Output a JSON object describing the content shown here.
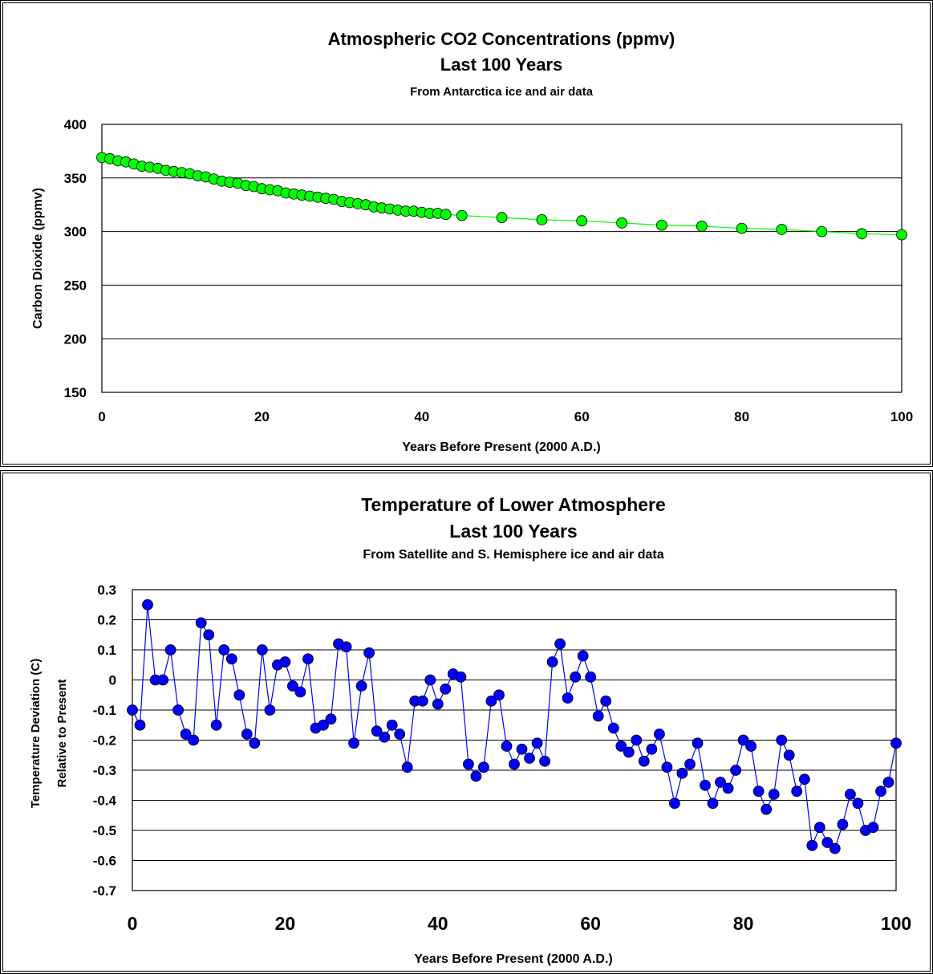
{
  "chart_data": [
    {
      "type": "line",
      "title": "Atmospheric CO2 Concentrations (ppmv)",
      "subtitle": "Last 100 Years",
      "note": "From Antarctica ice and air data",
      "xlabel": "Years Before Present (2000 A.D.)",
      "ylabel": "Carbon Dioxide (ppmv)",
      "xlim": [
        0,
        100
      ],
      "ylim": [
        150,
        400
      ],
      "xticks": [
        0,
        20,
        40,
        60,
        80,
        100
      ],
      "yticks": [
        150,
        200,
        250,
        300,
        350,
        400
      ],
      "grid": true,
      "marker_color": "#00ff00",
      "line_color": "#00ff00",
      "series": [
        {
          "x": [
            0,
            1,
            2,
            3,
            4,
            5,
            6,
            7,
            8,
            9,
            10,
            11,
            12,
            13,
            14,
            15,
            16,
            17,
            18,
            19,
            20,
            21,
            22,
            23,
            24,
            25,
            26,
            27,
            28,
            29,
            30,
            31,
            32,
            33,
            34,
            35,
            36,
            37,
            38,
            39,
            40,
            41,
            42,
            43,
            45,
            50,
            55,
            60,
            65,
            70,
            75,
            80,
            85,
            90,
            95,
            100
          ],
          "y": [
            369,
            368,
            366,
            365,
            363,
            361,
            360,
            359,
            357,
            356,
            355,
            354,
            352,
            351,
            349,
            347,
            346,
            345,
            343,
            342,
            340,
            339,
            338,
            336,
            335,
            334,
            333,
            332,
            331,
            330,
            328,
            327,
            326,
            325,
            323,
            322,
            321,
            320,
            319,
            319,
            318,
            317,
            317,
            316,
            315,
            313,
            311,
            310,
            308,
            306,
            305,
            303,
            302,
            300,
            298,
            297
          ]
        }
      ]
    },
    {
      "type": "line",
      "title": "Temperature of Lower Atmosphere",
      "subtitle": "Last 100 Years",
      "note": "From Satellite and S. Hemisphere ice and air data",
      "xlabel": "Years Before Present (2000 A.D.)",
      "ylabel": "Temperature Deviation (C)",
      "ylabel2": "Relative to Present",
      "xlim": [
        0,
        100
      ],
      "ylim": [
        -0.7,
        0.3
      ],
      "xticks": [
        0,
        20,
        40,
        60,
        80,
        100
      ],
      "yticks": [
        0.3,
        0.2,
        0.1,
        0,
        -0.1,
        -0.2,
        -0.3,
        -0.4,
        -0.5,
        -0.6,
        -0.7
      ],
      "grid": true,
      "marker_color": "#0000ff",
      "line_color": "#0000ff",
      "series": [
        {
          "x": [
            0,
            1,
            2,
            3,
            4,
            5,
            6,
            7,
            8,
            9,
            10,
            11,
            12,
            13,
            14,
            15,
            16,
            17,
            18,
            19,
            20,
            21,
            22,
            23,
            24,
            25,
            26,
            27,
            28,
            29,
            30,
            31,
            32,
            33,
            34,
            35,
            36,
            37,
            38,
            39,
            40,
            41,
            42,
            43,
            44,
            45,
            46,
            47,
            48,
            49,
            50,
            51,
            52,
            53,
            54,
            55,
            56,
            57,
            58,
            59,
            60,
            61,
            62,
            63,
            64,
            65,
            66,
            67,
            68,
            69,
            70,
            71,
            72,
            73,
            74,
            75,
            76,
            77,
            78,
            79,
            80,
            81,
            82,
            83,
            84,
            85,
            86,
            87,
            88,
            89,
            90,
            91,
            92,
            93,
            94,
            95,
            96,
            97,
            98,
            99,
            100
          ],
          "y": [
            -0.1,
            -0.15,
            0.25,
            0,
            0,
            0.1,
            -0.1,
            -0.18,
            -0.2,
            0.19,
            0.15,
            -0.15,
            0.1,
            0.07,
            -0.05,
            -0.18,
            -0.21,
            0.1,
            -0.1,
            0.05,
            0.06,
            -0.02,
            -0.04,
            0.07,
            -0.16,
            -0.15,
            -0.13,
            0.12,
            0.11,
            -0.21,
            -0.02,
            0.09,
            -0.17,
            -0.19,
            -0.15,
            -0.18,
            -0.29,
            -0.07,
            -0.07,
            0,
            -0.08,
            -0.03,
            0.02,
            0.01,
            -0.28,
            -0.32,
            -0.29,
            -0.07,
            -0.05,
            -0.22,
            -0.28,
            -0.23,
            -0.26,
            -0.21,
            -0.27,
            0.06,
            0.12,
            -0.06,
            0.01,
            0.08,
            0.01,
            -0.12,
            -0.07,
            -0.16,
            -0.22,
            -0.24,
            -0.2,
            -0.27,
            -0.23,
            -0.18,
            -0.29,
            -0.41,
            -0.31,
            -0.28,
            -0.21,
            -0.35,
            -0.41,
            -0.34,
            -0.36,
            -0.3,
            -0.2,
            -0.22,
            -0.37,
            -0.43,
            -0.38,
            -0.2,
            -0.25,
            -0.37,
            -0.33,
            -0.55,
            -0.49,
            -0.54,
            -0.56,
            -0.48,
            -0.38,
            -0.41,
            -0.5,
            -0.49,
            -0.37,
            -0.34,
            -0.21
          ]
        }
      ]
    }
  ]
}
